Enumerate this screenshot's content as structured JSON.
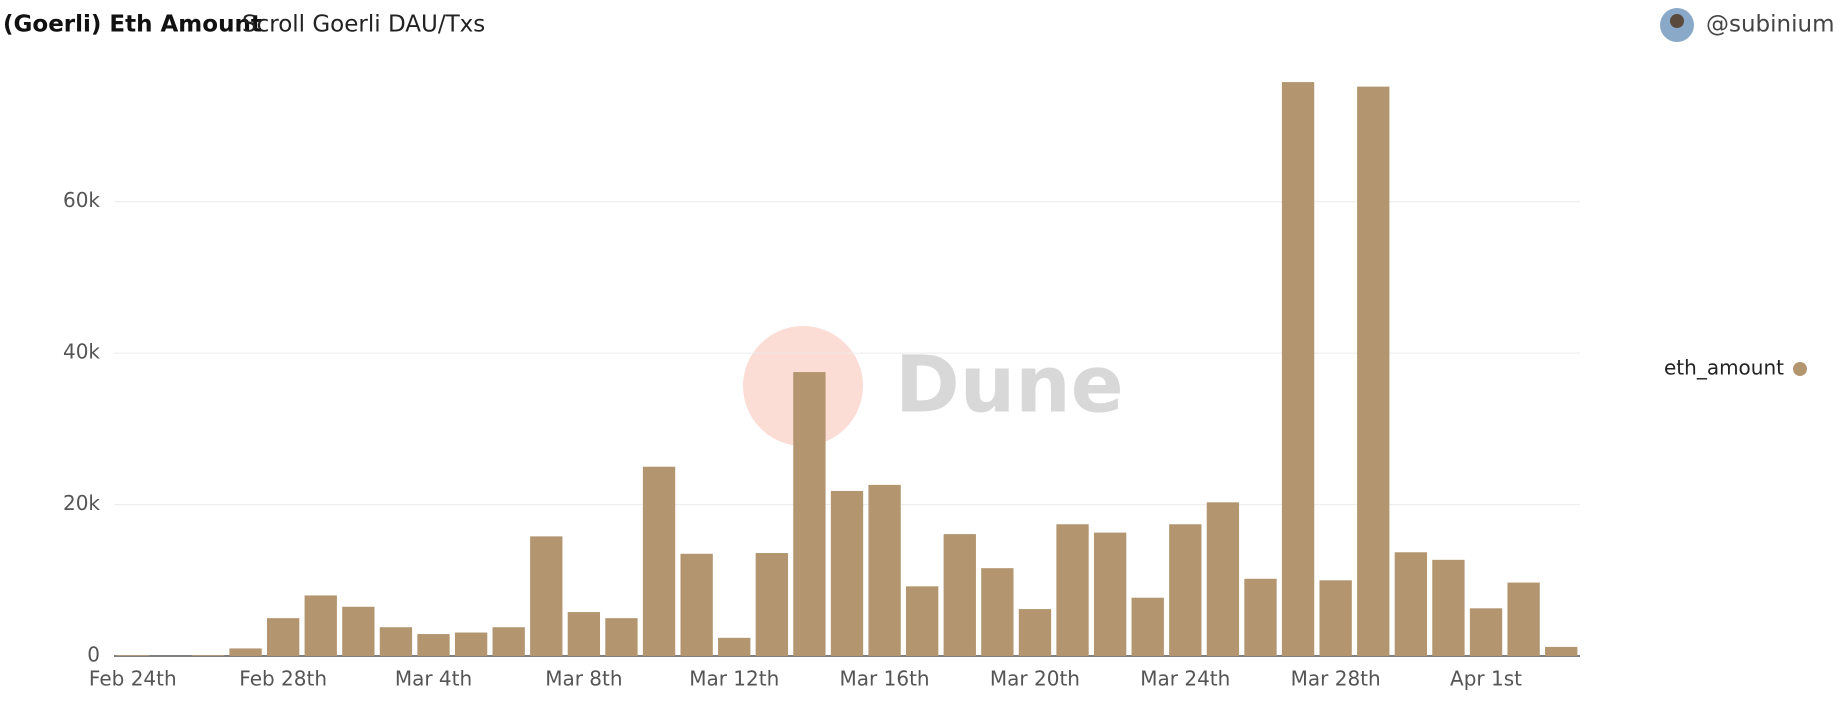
{
  "chart_data": {
    "type": "bar",
    "title": "(Goerli) Eth Amount",
    "subtitle": "Scroll Goerli DAU/Txs",
    "author": "@subinium",
    "watermark": "Dune",
    "categories": [
      "Feb 24th",
      null,
      null,
      null,
      "Feb 28th",
      null,
      null,
      null,
      "Mar 4th",
      null,
      null,
      null,
      "Mar 8th",
      null,
      null,
      null,
      "Mar 12th",
      null,
      null,
      null,
      "Mar 16th",
      null,
      null,
      null,
      "Mar 20th",
      null,
      null,
      null,
      "Mar 24th",
      null,
      null,
      null,
      "Mar 28th",
      null,
      null,
      null,
      "Apr 1st",
      null,
      null
    ],
    "series": [
      {
        "name": "eth_amount",
        "color": "#b39670",
        "values": [
          100,
          0,
          100,
          1000,
          5000,
          8000,
          6500,
          3800,
          2900,
          3100,
          3800,
          15800,
          5800,
          5000,
          25000,
          13500,
          2400,
          13600,
          37500,
          21800,
          22600,
          9200,
          16100,
          11600,
          6200,
          17400,
          16300,
          7700,
          17400,
          20300,
          10200,
          75800,
          10000,
          75200,
          13700,
          12700,
          6300,
          9700,
          1200
        ]
      }
    ],
    "ylim": [
      0,
      77000
    ],
    "yticks": [
      0,
      {
        "value": 20000,
        "label": "20k"
      },
      {
        "value": 40000,
        "label": "40k"
      },
      {
        "value": 60000,
        "label": "60k"
      }
    ],
    "grid": true,
    "legend": "right"
  }
}
